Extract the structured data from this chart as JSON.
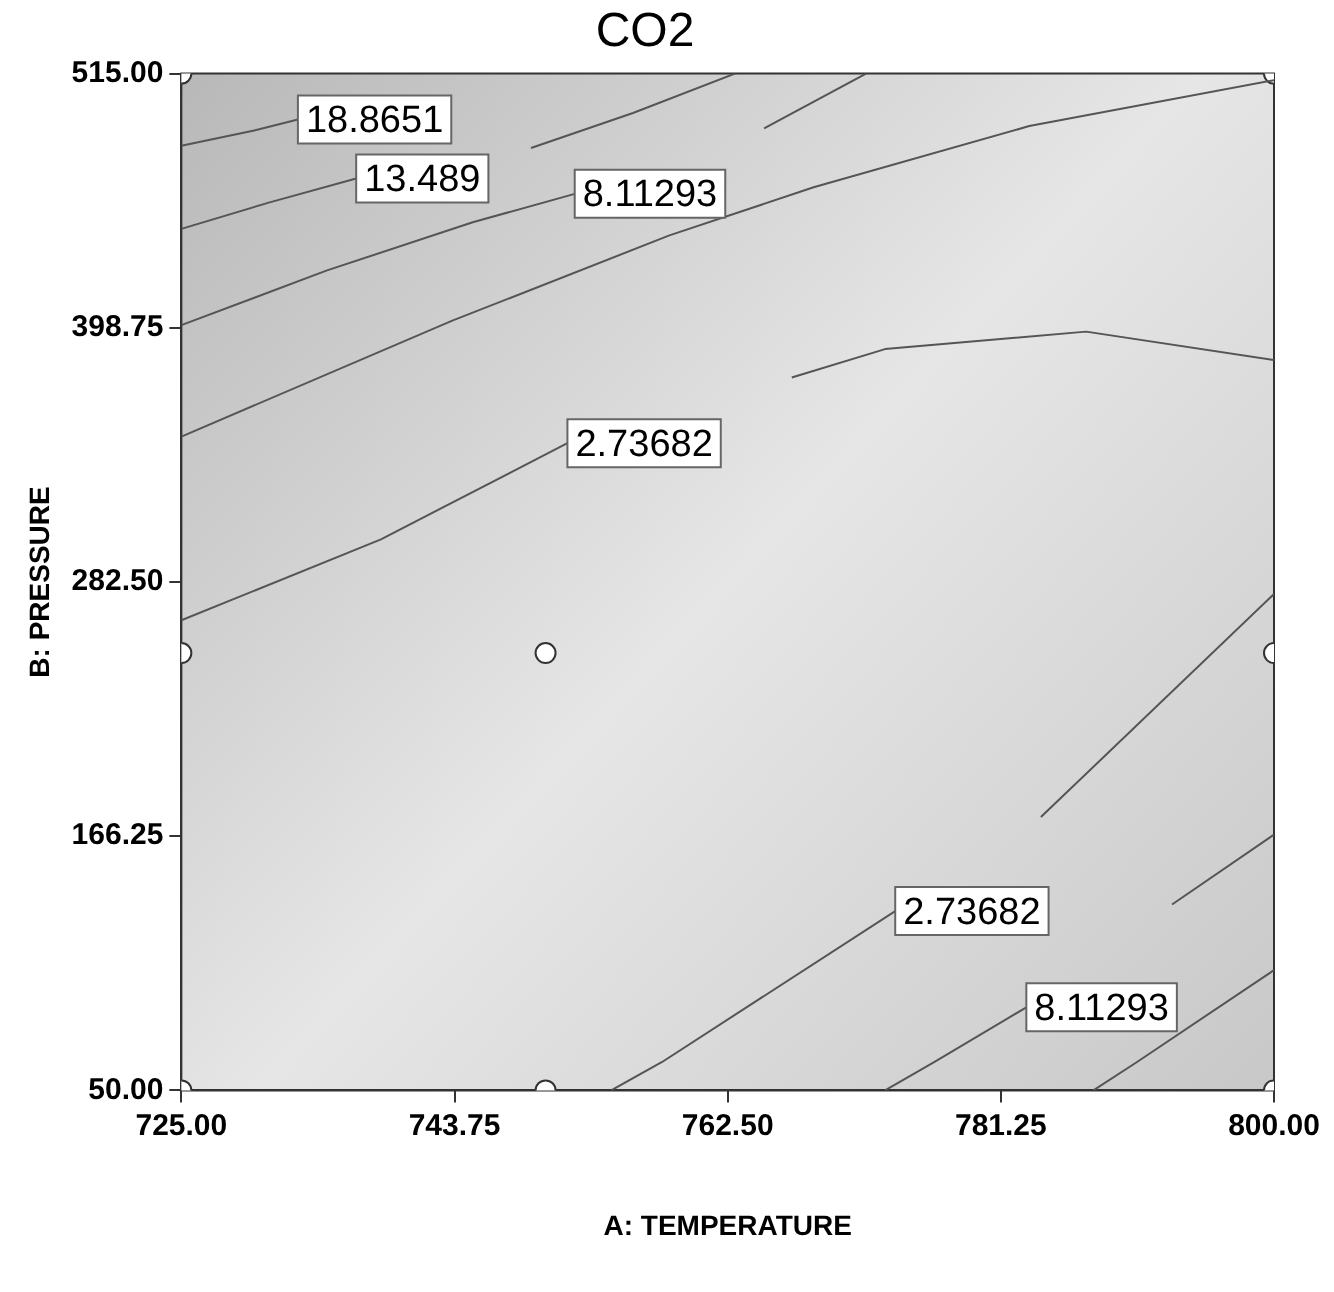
{
  "chart_data": {
    "type": "line",
    "title": "CO2",
    "xlabel": "A: TEMPERATURE",
    "ylabel": "B: PRESSURE",
    "grid": false,
    "legend": false,
    "xlim": [
      725,
      800
    ],
    "xticks": [
      {
        "value": 725,
        "label": "725.00"
      },
      {
        "value": 743.75,
        "label": "743.75"
      },
      {
        "value": 762.5,
        "label": "762.50"
      },
      {
        "value": 781.25,
        "label": "781.25"
      },
      {
        "value": 800,
        "label": "800.00"
      }
    ],
    "ylim": [
      50,
      515
    ],
    "yticks": [
      {
        "value": 50,
        "label": "50.00"
      },
      {
        "value": 166.25,
        "label": "166.25"
      },
      {
        "value": 282.5,
        "label": "282.50"
      },
      {
        "value": 398.75,
        "label": "398.75"
      },
      {
        "value": 515,
        "label": "515.00"
      }
    ],
    "series": [
      {
        "color": "#555555",
        "x": [
          725,
          730,
          733
        ],
        "values": [
          482,
          489,
          494
        ]
      },
      {
        "color": "#555555",
        "x": [
          725,
          731,
          737,
          743,
          749,
          756,
          763
        ],
        "values": [
          444,
          456,
          467,
          null,
          481,
          497,
          515
        ]
      },
      {
        "color": "#555555",
        "x": [
          725,
          735,
          745,
          752,
          758,
          765,
          772
        ],
        "values": [
          400,
          425,
          447,
          460,
          null,
          490,
          515
        ]
      },
      {
        "color": "#555555",
        "x": [
          725,
          743.6,
          758.5,
          768.4,
          783.2,
          800
        ],
        "values": [
          349,
          402,
          441,
          463,
          491,
          512
        ]
      },
      {
        "color": "#555555",
        "x": [
          725,
          738.7,
          751.5,
          759,
          766.9,
          773.3,
          787.1,
          800
        ],
        "values": [
          265,
          302,
          346,
          null,
          376,
          389,
          397,
          384
        ]
      },
      {
        "color": "#555555",
        "x": [
          754.5,
          758,
          774,
          780,
          784,
          800
        ],
        "values": [
          50,
          63,
          132,
          null,
          175,
          277
        ]
      },
      {
        "color": "#555555",
        "x": [
          773.3,
          776.7,
          783,
          789,
          793,
          800
        ],
        "values": [
          50,
          63,
          88,
          null,
          135,
          167
        ]
      },
      {
        "color": "#555555",
        "x": [
          787.6,
          790.6,
          800
        ],
        "values": [
          50,
          63,
          105
        ]
      },
      {
        "type": "scatter",
        "color": "#333333",
        "marker": "circle",
        "x": [
          725,
          800,
          725,
          750,
          800,
          725,
          750,
          800
        ],
        "values": [
          515,
          515,
          250,
          250,
          250,
          50,
          50,
          50
        ]
      }
    ],
    "annotations": [
      {
        "text": "18.8651",
        "x": 733,
        "y": 494
      },
      {
        "text": "13.489",
        "x": 737,
        "y": 467
      },
      {
        "text": "8.11293",
        "x": 752,
        "y": 460
      },
      {
        "text": "2.73682",
        "x": 751.5,
        "y": 346
      },
      {
        "text": "2.73682",
        "x": 774,
        "y": 132
      },
      {
        "text": "8.11293",
        "x": 783,
        "y": 88
      }
    ]
  }
}
